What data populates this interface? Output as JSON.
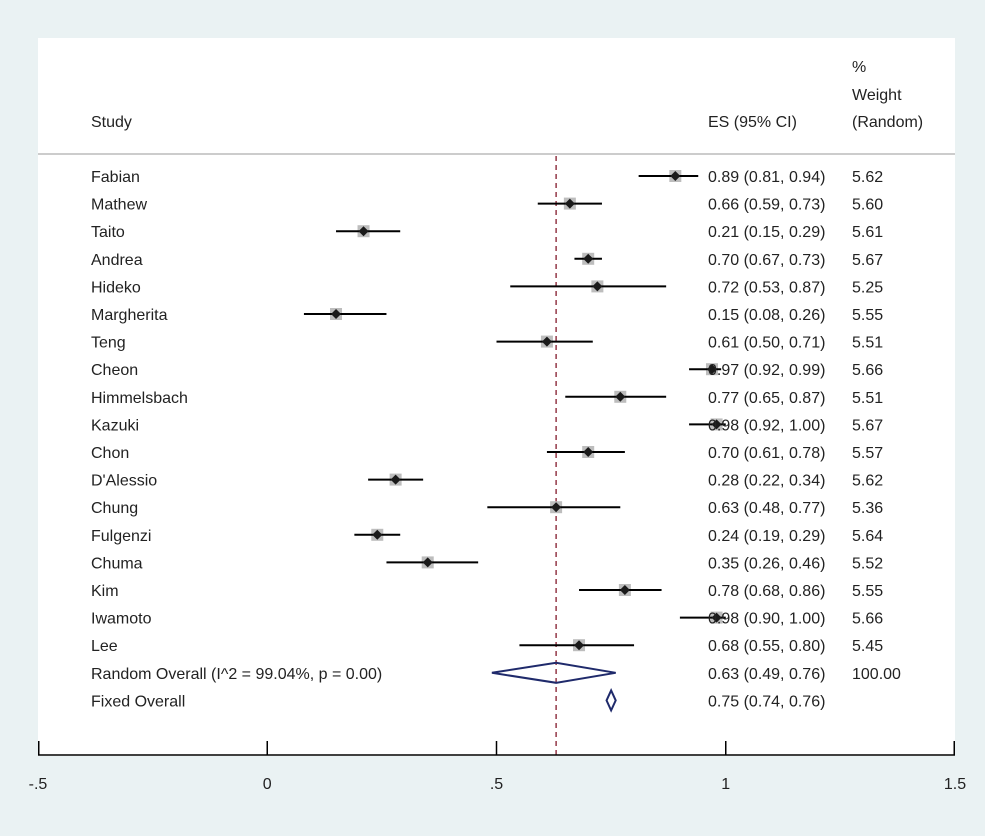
{
  "chart_data": {
    "type": "forest",
    "headers": {
      "study": "Study",
      "es": "ES (95% CI)",
      "weight_line1": "%",
      "weight_line2": "Weight",
      "weight_line3": "(Random)"
    },
    "xaxis": {
      "min": -0.5,
      "max": 1.5,
      "ticks": [
        -0.5,
        0,
        0.5,
        1,
        1.5
      ],
      "tick_labels": [
        "-.5",
        "0",
        ".5",
        "1",
        "1.5"
      ]
    },
    "reference_line": 0.63,
    "studies": [
      {
        "name": "Fabian",
        "es": 0.89,
        "lo": 0.81,
        "hi": 0.94,
        "es_text": "0.89 (0.81, 0.94)",
        "weight": "5.62"
      },
      {
        "name": "Mathew",
        "es": 0.66,
        "lo": 0.59,
        "hi": 0.73,
        "es_text": "0.66 (0.59, 0.73)",
        "weight": "5.60"
      },
      {
        "name": "Taito",
        "es": 0.21,
        "lo": 0.15,
        "hi": 0.29,
        "es_text": "0.21 (0.15, 0.29)",
        "weight": "5.61"
      },
      {
        "name": "Andrea",
        "es": 0.7,
        "lo": 0.67,
        "hi": 0.73,
        "es_text": "0.70 (0.67, 0.73)",
        "weight": "5.67"
      },
      {
        "name": "Hideko",
        "es": 0.72,
        "lo": 0.53,
        "hi": 0.87,
        "es_text": "0.72 (0.53, 0.87)",
        "weight": "5.25"
      },
      {
        "name": "Margherita",
        "es": 0.15,
        "lo": 0.08,
        "hi": 0.26,
        "es_text": "0.15 (0.08, 0.26)",
        "weight": "5.55"
      },
      {
        "name": "Teng",
        "es": 0.61,
        "lo": 0.5,
        "hi": 0.71,
        "es_text": "0.61 (0.50, 0.71)",
        "weight": "5.51"
      },
      {
        "name": "Cheon",
        "es": 0.97,
        "lo": 0.92,
        "hi": 0.99,
        "es_text": "0.97 (0.92, 0.99)",
        "weight": "5.66"
      },
      {
        "name": "Himmelsbach",
        "es": 0.77,
        "lo": 0.65,
        "hi": 0.87,
        "es_text": "0.77 (0.65, 0.87)",
        "weight": "5.51"
      },
      {
        "name": "Kazuki",
        "es": 0.98,
        "lo": 0.92,
        "hi": 1.0,
        "es_text": "0.98 (0.92, 1.00)",
        "weight": "5.67"
      },
      {
        "name": "Chon",
        "es": 0.7,
        "lo": 0.61,
        "hi": 0.78,
        "es_text": "0.70 (0.61, 0.78)",
        "weight": "5.57"
      },
      {
        "name": "D'Alessio",
        "es": 0.28,
        "lo": 0.22,
        "hi": 0.34,
        "es_text": "0.28 (0.22, 0.34)",
        "weight": "5.62"
      },
      {
        "name": "Chung",
        "es": 0.63,
        "lo": 0.48,
        "hi": 0.77,
        "es_text": "0.63 (0.48, 0.77)",
        "weight": "5.36"
      },
      {
        "name": "Fulgenzi",
        "es": 0.24,
        "lo": 0.19,
        "hi": 0.29,
        "es_text": "0.24 (0.19, 0.29)",
        "weight": "5.64"
      },
      {
        "name": "Chuma",
        "es": 0.35,
        "lo": 0.26,
        "hi": 0.46,
        "es_text": "0.35 (0.26, 0.46)",
        "weight": "5.52"
      },
      {
        "name": "Kim",
        "es": 0.78,
        "lo": 0.68,
        "hi": 0.86,
        "es_text": "0.78 (0.68, 0.86)",
        "weight": "5.55"
      },
      {
        "name": "Iwamoto",
        "es": 0.98,
        "lo": 0.9,
        "hi": 1.0,
        "es_text": "0.98 (0.90, 1.00)",
        "weight": "5.66"
      },
      {
        "name": "Lee",
        "es": 0.68,
        "lo": 0.55,
        "hi": 0.8,
        "es_text": "0.68 (0.55, 0.80)",
        "weight": "5.45"
      }
    ],
    "overall": [
      {
        "name": "Random Overall  (I^2 = 99.04%, p = 0.00)",
        "es": 0.63,
        "lo": 0.49,
        "hi": 0.76,
        "es_text": "0.63 (0.49, 0.76)",
        "weight": "100.00"
      },
      {
        "name": "Fixed Overall",
        "es": 0.75,
        "lo": 0.74,
        "hi": 0.76,
        "es_text": "0.75 (0.74, 0.76)",
        "weight": ""
      }
    ],
    "colors": {
      "background": "#eaf2f3",
      "panel": "#ffffff",
      "weight_box": "#bdbdbd",
      "point": "#1a1a1a",
      "ci_line": "#000000",
      "reference_line": "#8b2a3a",
      "diamond": "#1f2a6b",
      "header_rule": "#bbbbbb"
    }
  }
}
